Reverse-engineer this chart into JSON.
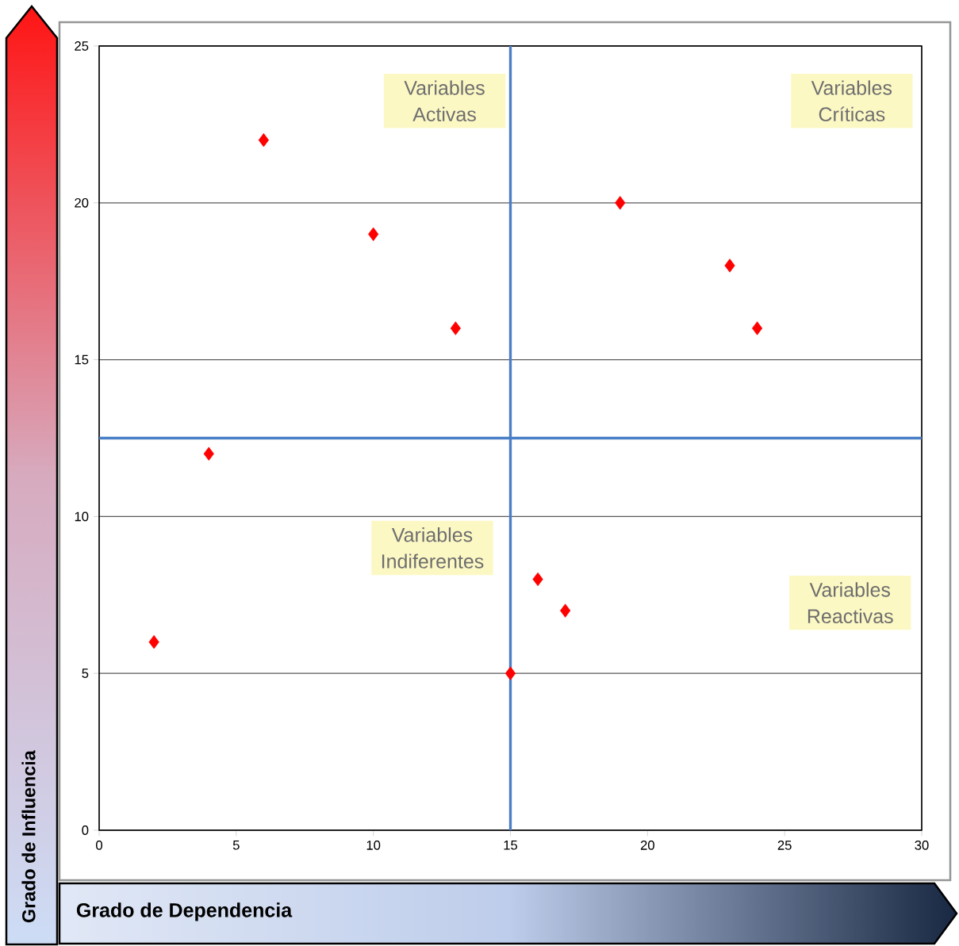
{
  "chart_data": {
    "type": "scatter",
    "xlabel": "Grado de Dependencia",
    "ylabel": "Grado de Influencia",
    "x": [
      2,
      4,
      6,
      10,
      13,
      15,
      16,
      17,
      19,
      23,
      24
    ],
    "values": [
      6,
      12,
      22,
      19,
      16,
      5,
      8,
      7,
      20,
      18,
      16
    ],
    "color": "#ff0000",
    "marker": "diamond",
    "xlim": [
      0,
      30
    ],
    "ylim": [
      0,
      25
    ],
    "xticks": [
      0,
      5,
      10,
      15,
      20,
      25,
      30
    ],
    "yticks": [
      0,
      5,
      10,
      15,
      20,
      25
    ],
    "grid": "y",
    "ref_lines": [
      {
        "axis": "x",
        "value": 15,
        "color": "#4a7fc7"
      },
      {
        "axis": "y",
        "value": 12.5,
        "color": "#4a7fc7"
      }
    ],
    "annotations": [
      "Variables Activas",
      "Variables Críticas",
      "Variables Indiferentes",
      "Variables Reactivas"
    ]
  }
}
